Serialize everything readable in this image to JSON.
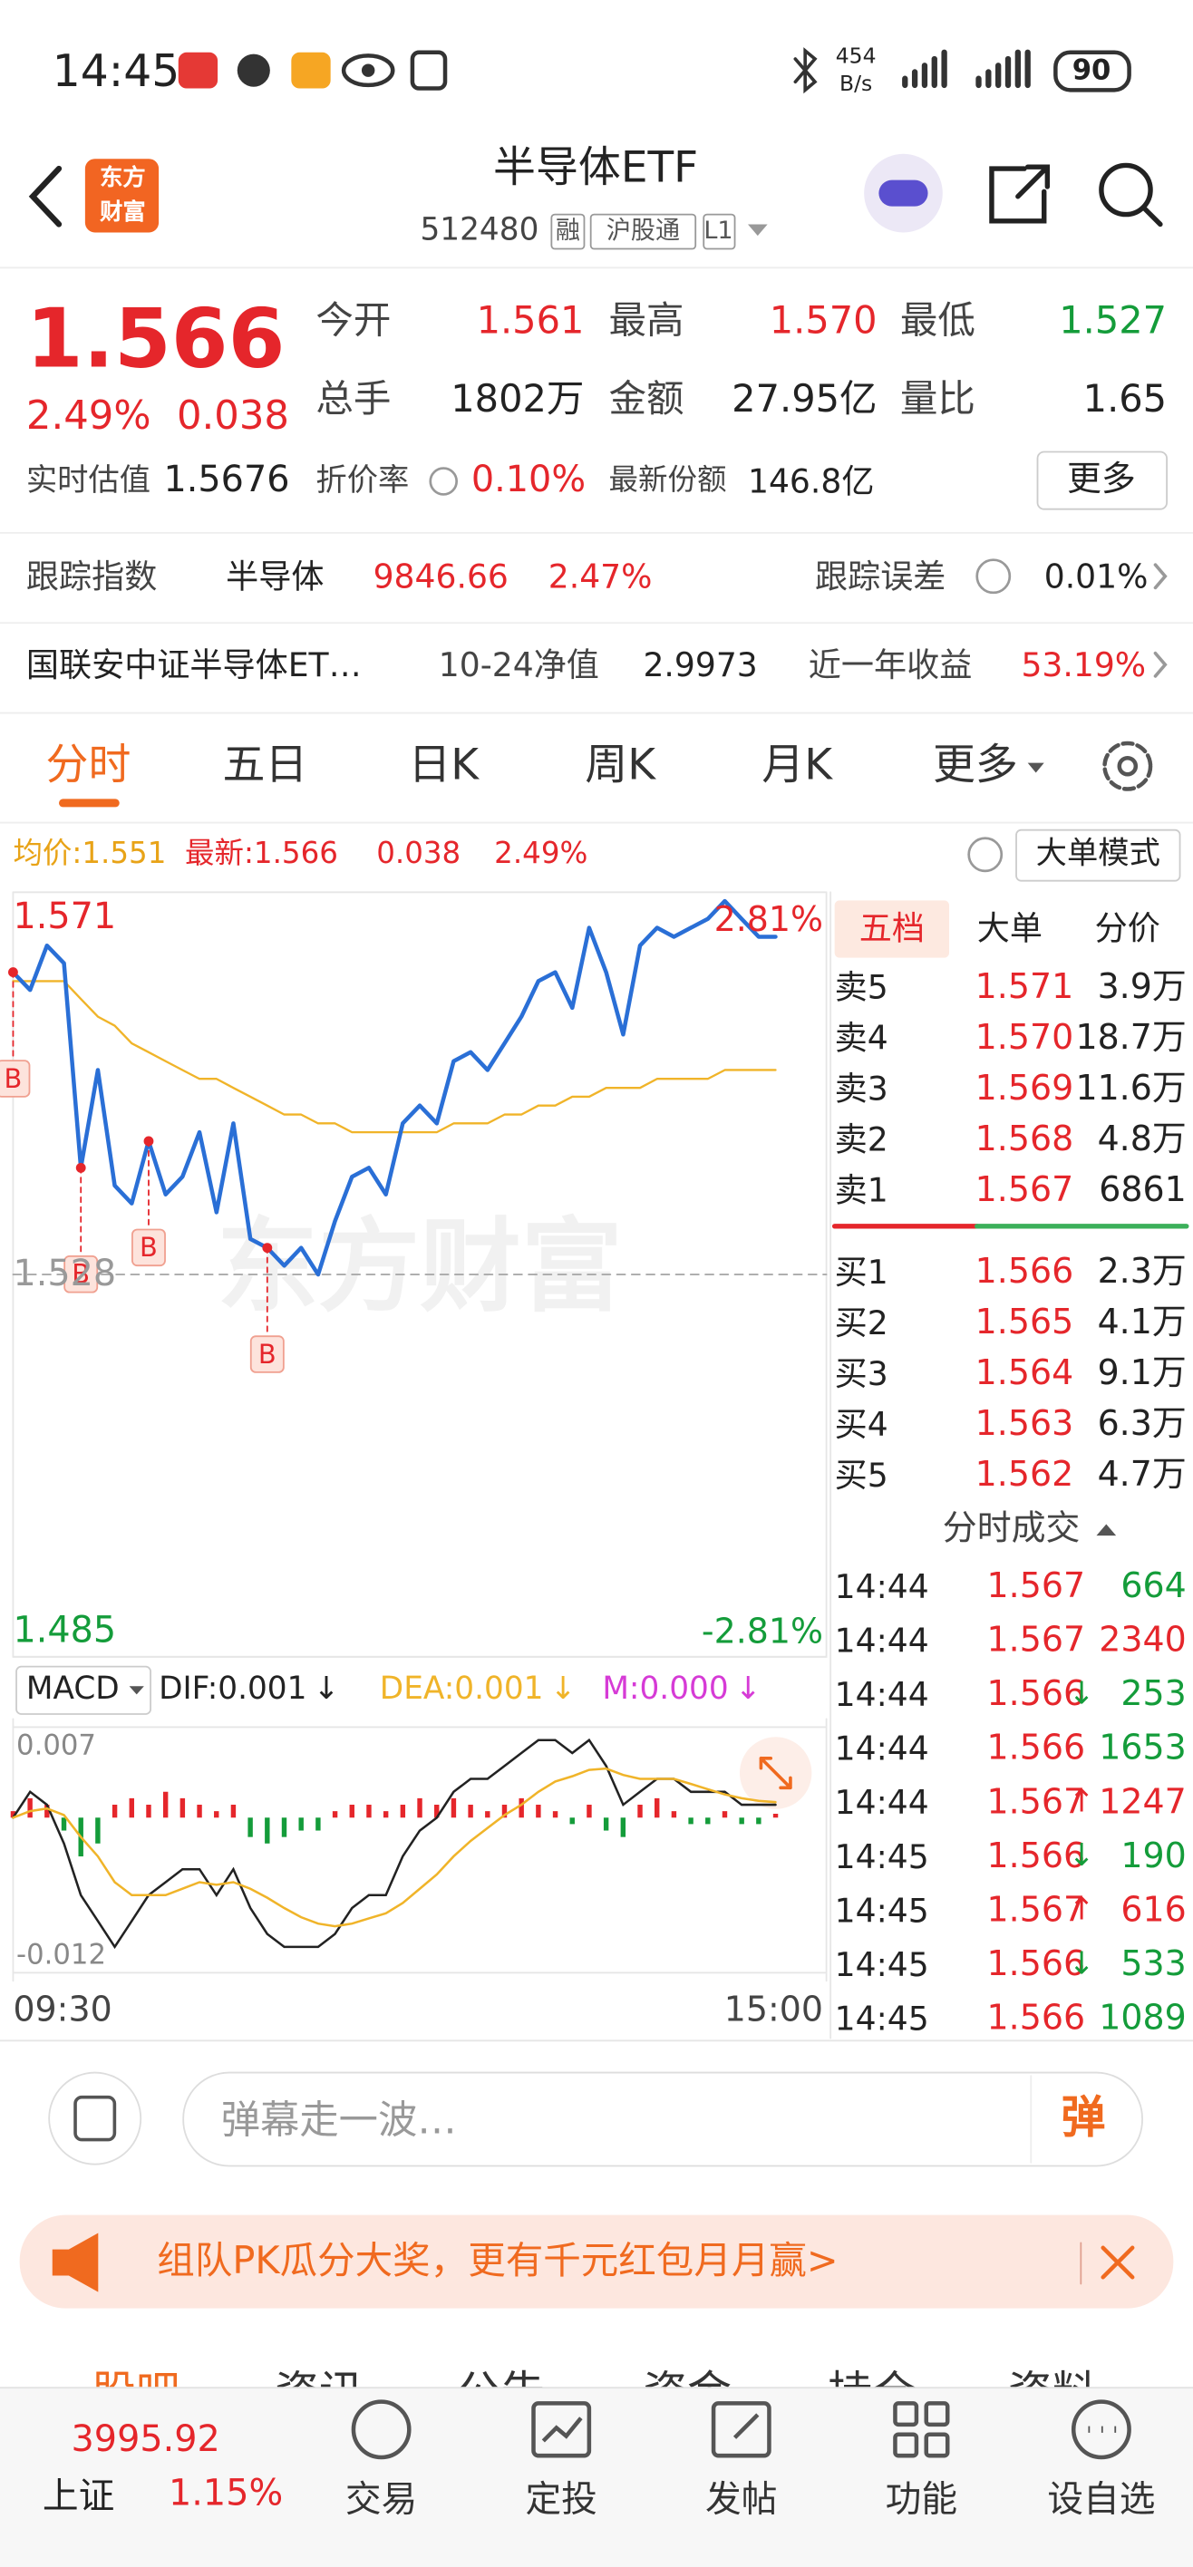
{
  "status_bar": {
    "time": "14:45",
    "net_speed": [
      "454",
      "B/s"
    ],
    "battery": "90"
  },
  "header": {
    "logo": [
      "东方",
      "财富"
    ],
    "title": "半导体ETF",
    "code": "512480",
    "tags": [
      "融",
      "沪股通",
      "L1"
    ]
  },
  "quote": {
    "price": "1.566",
    "change_pct": "2.49%",
    "change": "0.038",
    "fields": [
      {
        "label": "今开",
        "value": "1.561",
        "color": "#e5262b"
      },
      {
        "label": "最高",
        "value": "1.570",
        "color": "#e5262b"
      },
      {
        "label": "最低",
        "value": "1.527",
        "color": "#149c3a"
      },
      {
        "label": "总手",
        "value": "1802万",
        "color": "#222222"
      },
      {
        "label": "金额",
        "value": "27.95亿",
        "color": "#222222"
      },
      {
        "label": "量比",
        "value": "1.65",
        "color": "#222222"
      }
    ],
    "estimate_label": "实时估值",
    "estimate": "1.5676",
    "discount_label": "折价率",
    "discount": "0.10%",
    "share_label": "最新份额",
    "share": "146.8亿",
    "more": "更多"
  },
  "tracking": {
    "label": "跟踪指数",
    "index": "半导体",
    "value": "9846.66",
    "pct": "2.47%",
    "error_label": "跟踪误差",
    "error": "0.01%"
  },
  "fund": {
    "name": "国联安中证半导体ET…",
    "nav_label": "10-24净值",
    "nav": "2.9973",
    "return_label": "近一年收益",
    "return": "53.19%"
  },
  "tabs": [
    "分时",
    "五日",
    "日K",
    "周K",
    "月K",
    "更多"
  ],
  "info": {
    "avg": "均价:1.551",
    "latest": "最新:1.566",
    "change": "0.038",
    "pct": "2.49%",
    "mode": "大单模式"
  },
  "chart_data": [
    {
      "type": "line",
      "watermark": "东方财富",
      "x": [
        0,
        5,
        10,
        15,
        20,
        25,
        30,
        35,
        40,
        45,
        50,
        55,
        60,
        65,
        70,
        75,
        80,
        85,
        90,
        95,
        100,
        105,
        110,
        115,
        120,
        125,
        130,
        135,
        140,
        145,
        150,
        155,
        160,
        165,
        170,
        175,
        180,
        185,
        190,
        195,
        200,
        205,
        210,
        215,
        220,
        225
      ],
      "xlim": [
        0,
        240
      ],
      "ylim": [
        1.485,
        1.571
      ],
      "yticks": [
        1.485,
        1.528,
        1.571
      ],
      "y2lim": [
        -2.81,
        2.81
      ],
      "y2ticks": [
        {
          "value": -2.81,
          "label": "-2.81%"
        },
        {
          "value": 2.81,
          "label": "2.81%"
        }
      ],
      "up_color": "#e5262b",
      "down_color": "#149c3a",
      "series": [
        {
          "color": "#2a6fd6",
          "values": [
            1.562,
            1.56,
            1.565,
            1.563,
            1.54,
            1.551,
            1.538,
            1.536,
            1.543,
            1.537,
            1.539,
            1.544,
            1.535,
            1.545,
            1.532,
            1.531,
            1.529,
            1.531,
            1.528,
            1.534,
            1.539,
            1.54,
            1.537,
            1.545,
            1.547,
            1.545,
            1.552,
            1.553,
            1.551,
            1.554,
            1.557,
            1.561,
            1.562,
            1.558,
            1.567,
            1.562,
            1.555,
            1.565,
            1.567,
            1.566,
            1.567,
            1.568,
            1.57,
            1.568,
            1.566,
            1.566
          ]
        },
        {
          "color": "#f0b429",
          "values": [
            1.561,
            1.561,
            1.561,
            1.561,
            1.559,
            1.557,
            1.556,
            1.554,
            1.553,
            1.552,
            1.551,
            1.55,
            1.55,
            1.549,
            1.548,
            1.547,
            1.546,
            1.546,
            1.545,
            1.545,
            1.544,
            1.544,
            1.544,
            1.544,
            1.544,
            1.544,
            1.545,
            1.545,
            1.545,
            1.546,
            1.546,
            1.547,
            1.547,
            1.548,
            1.548,
            1.549,
            1.549,
            1.549,
            1.55,
            1.55,
            1.55,
            1.55,
            1.551,
            1.551,
            1.551,
            1.551
          ]
        }
      ],
      "markers": {
        "x": [
          0,
          20,
          40,
          75
        ],
        "label": "B",
        "color": "#e5262b"
      }
    },
    {
      "type": "bar",
      "title": "MACD",
      "x": [
        0,
        5,
        10,
        15,
        20,
        25,
        30,
        35,
        40,
        45,
        50,
        55,
        60,
        65,
        70,
        75,
        80,
        85,
        90,
        95,
        100,
        105,
        110,
        115,
        120,
        125,
        130,
        135,
        140,
        145,
        150,
        155,
        160,
        165,
        170,
        175,
        180,
        185,
        190,
        195,
        200,
        205,
        210,
        215,
        220,
        225
      ],
      "xlim": [
        0,
        240
      ],
      "xticks": [
        {
          "value": 0,
          "label": "09:30"
        },
        {
          "value": 240,
          "label": "15:00"
        }
      ],
      "ylim": [
        -0.012,
        0.007
      ],
      "yticks": [
        -0.012,
        0.007
      ],
      "up_color": "#e5262b",
      "down_color": "#149c3a",
      "series": [
        {
          "name": "DIF:0.001",
          "trend": "↓",
          "color": "#222222",
          "kind": "line",
          "values": [
            0,
            0.002,
            0.001,
            -0.002,
            -0.006,
            -0.008,
            -0.01,
            -0.008,
            -0.006,
            -0.005,
            -0.004,
            -0.004,
            -0.006,
            -0.004,
            -0.007,
            -0.009,
            -0.01,
            -0.01,
            -0.01,
            -0.009,
            -0.007,
            -0.006,
            -0.006,
            -0.003,
            -0.001,
            0,
            0.002,
            0.003,
            0.003,
            0.004,
            0.005,
            0.006,
            0.006,
            0.005,
            0.006,
            0.004,
            0.001,
            0.002,
            0.003,
            0.003,
            0.002,
            0.002,
            0.002,
            0.001,
            0.001,
            0.001
          ]
        },
        {
          "name": "DEA:0.001",
          "trend": "↓",
          "color": "#f0b429",
          "kind": "line",
          "values": [
            0,
            0.0005,
            0.0007,
            0.0002,
            -0.0015,
            -0.003,
            -0.005,
            -0.006,
            -0.006,
            -0.006,
            -0.0055,
            -0.005,
            -0.0052,
            -0.005,
            -0.0055,
            -0.0062,
            -0.007,
            -0.0077,
            -0.0082,
            -0.0084,
            -0.0082,
            -0.0078,
            -0.0074,
            -0.0066,
            -0.0055,
            -0.0044,
            -0.003,
            -0.0018,
            -0.0008,
            0.0002,
            0.001,
            0.002,
            0.0028,
            0.0032,
            0.0037,
            0.0038,
            0.0033,
            0.003,
            0.003,
            0.003,
            0.0026,
            0.0022,
            0.0018,
            0.0015,
            0.0013,
            0.0012
          ]
        },
        {
          "name": "M:0.000",
          "trend": "↓",
          "color": "#d63bd6",
          "kind": "bar",
          "values": [
            0.0005,
            0.0015,
            0.001,
            -0.001,
            -0.003,
            -0.002,
            0.001,
            0.0015,
            0.001,
            0.002,
            0.0015,
            0.001,
            0.0005,
            0.001,
            -0.0015,
            -0.002,
            -0.0015,
            -0.001,
            -0.001,
            0.0005,
            0.001,
            0.001,
            0.0005,
            0.001,
            0.0015,
            0.001,
            0.0015,
            0.001,
            0.0005,
            0.001,
            0.0015,
            0.001,
            0.0005,
            -0.0005,
            0.001,
            -0.001,
            -0.0015,
            0.001,
            0.0015,
            0.0005,
            -0.0005,
            -0.0005,
            0.0005,
            -0.0005,
            -0.0005,
            0.0003
          ]
        }
      ]
    }
  ],
  "order_book": {
    "tabs": [
      "五档",
      "大单",
      "分价"
    ],
    "sells": [
      {
        "label": "卖5",
        "price": "1.571",
        "volume": "3.9万"
      },
      {
        "label": "卖4",
        "price": "1.570",
        "volume": "18.7万"
      },
      {
        "label": "卖3",
        "price": "1.569",
        "volume": "11.6万"
      },
      {
        "label": "卖2",
        "price": "1.568",
        "volume": "4.8万"
      },
      {
        "label": "卖1",
        "price": "1.567",
        "volume": "6861"
      }
    ],
    "buys": [
      {
        "label": "买1",
        "price": "1.566",
        "volume": "2.3万"
      },
      {
        "label": "买2",
        "price": "1.565",
        "volume": "4.1万"
      },
      {
        "label": "买3",
        "price": "1.564",
        "volume": "9.1万"
      },
      {
        "label": "买4",
        "price": "1.563",
        "volume": "6.3万"
      },
      {
        "label": "买5",
        "price": "1.562",
        "volume": "4.7万"
      }
    ]
  },
  "trades": {
    "header": "分时成交",
    "rows": [
      {
        "time": "14:44",
        "price": "1.567",
        "volume": "664",
        "color": "#149c3a"
      },
      {
        "time": "14:44",
        "price": "1.567",
        "volume": "2340",
        "color": "#e5262b"
      },
      {
        "time": "14:44",
        "price": "1.566",
        "dir": "↓",
        "volume": "253",
        "color": "#149c3a"
      },
      {
        "time": "14:44",
        "price": "1.566",
        "volume": "1653",
        "color": "#149c3a"
      },
      {
        "time": "14:44",
        "price": "1.567",
        "dir": "↑",
        "volume": "1247",
        "color": "#e5262b"
      },
      {
        "time": "14:45",
        "price": "1.566",
        "dir": "↓",
        "volume": "190",
        "color": "#149c3a"
      },
      {
        "time": "14:45",
        "price": "1.567",
        "dir": "↑",
        "volume": "616",
        "color": "#e5262b"
      },
      {
        "time": "14:45",
        "price": "1.566",
        "dir": "↓",
        "volume": "533",
        "color": "#149c3a"
      },
      {
        "time": "14:45",
        "price": "1.566",
        "volume": "1089",
        "color": "#149c3a"
      }
    ]
  },
  "danmaku": {
    "placeholder": "弹幕走一波…",
    "send": "弹"
  },
  "banner": "组队PK瓜分大奖，更有千元红包月月赢>",
  "section_tabs": [
    "股吧",
    "资讯",
    "公告",
    "资金",
    "持仓",
    "资料"
  ],
  "nav": {
    "index_value": "3995.92",
    "index_name": "上证",
    "index_pct": "1.15%",
    "items": [
      "交易",
      "定投",
      "发帖",
      "功能",
      "设自选"
    ]
  }
}
